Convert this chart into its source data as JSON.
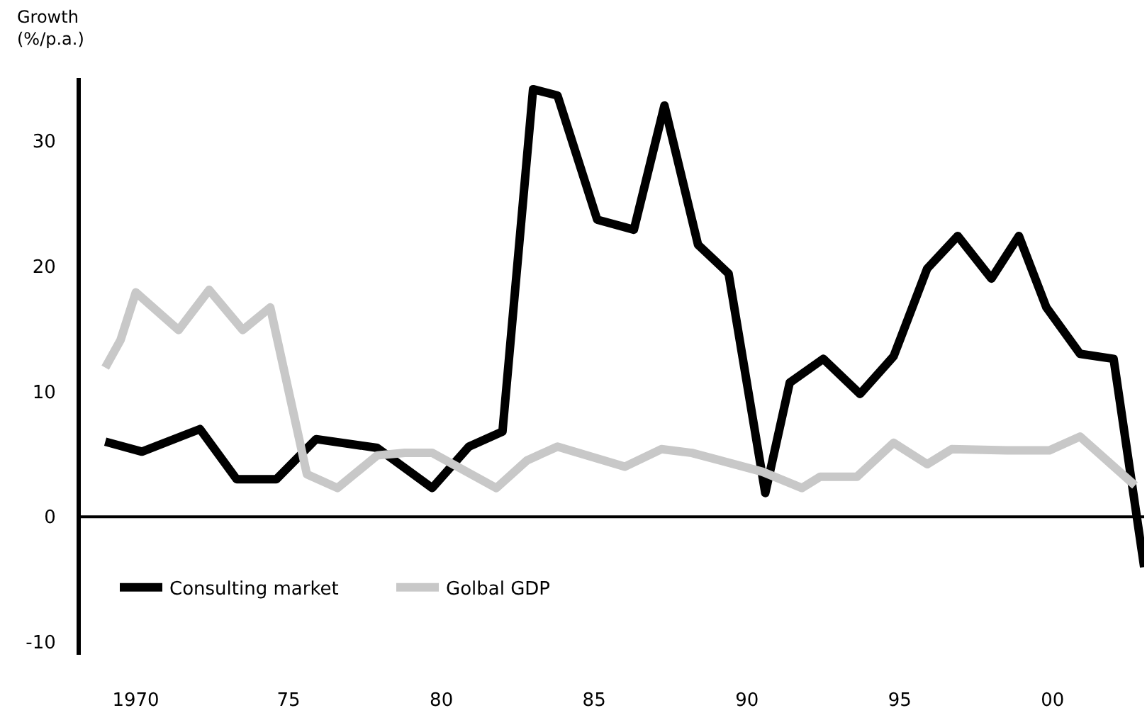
{
  "chart_data": {
    "type": "line",
    "ylabel": "Growth\n(%/p.a.)",
    "series": [
      {
        "name": "Consulting market",
        "color": "#000000",
        "x": [
          1969.0,
          1970.2,
          1972.1,
          1973.3,
          1974.6,
          1975.9,
          1977.9,
          1979.7,
          1980.9,
          1982.0,
          1983.0,
          1983.8,
          1985.1,
          1986.3,
          1987.3,
          1988.4,
          1989.4,
          1990.6,
          1991.4,
          1992.5,
          1993.7,
          1994.8,
          1995.9,
          1996.9,
          1998.0,
          1998.9,
          1999.8,
          2000.9,
          2002.0,
          2003.0
        ],
        "values": [
          6.0,
          5.2,
          7.0,
          3.0,
          3.0,
          6.2,
          5.5,
          2.3,
          5.6,
          6.8,
          34.1,
          33.6,
          23.7,
          22.9,
          32.8,
          21.7,
          19.4,
          1.9,
          10.7,
          12.6,
          9.8,
          12.8,
          19.8,
          22.4,
          19.0,
          22.4,
          16.7,
          13.0,
          12.6,
          -4.0
        ]
      },
      {
        "name": "Golbal GDP",
        "color": "#c8c8c8",
        "x": [
          1969.0,
          1969.5,
          1970.0,
          1971.4,
          1972.4,
          1973.5,
          1974.4,
          1975.6,
          1976.6,
          1977.9,
          1978.8,
          1979.7,
          1981.8,
          1982.8,
          1983.8,
          1986.0,
          1987.2,
          1988.2,
          1990.5,
          1991.8,
          1992.4,
          1993.6,
          1994.8,
          1995.9,
          1996.7,
          1998.5,
          1999.9,
          2000.9,
          2002.7
        ],
        "values": [
          11.9,
          14.1,
          17.9,
          14.9,
          18.1,
          14.9,
          16.7,
          3.4,
          2.3,
          4.9,
          5.1,
          5.1,
          2.3,
          4.5,
          5.6,
          4.0,
          5.4,
          5.1,
          3.6,
          2.3,
          3.2,
          3.2,
          5.9,
          4.2,
          5.4,
          5.3,
          5.3,
          6.4,
          2.5
        ]
      }
    ],
    "xlim": [
      1968.2,
      2003.0
    ],
    "xticks": [
      1970,
      {
        "value": 1975,
        "label": "75"
      },
      {
        "value": 1980,
        "label": "80"
      },
      {
        "value": 1985,
        "label": "85"
      },
      {
        "value": 1990,
        "label": "90"
      },
      {
        "value": 1995,
        "label": "95"
      },
      {
        "value": 2000,
        "label": "00"
      }
    ],
    "ylim": [
      -11,
      35
    ],
    "yticks": [
      -10,
      0,
      10,
      20,
      30
    ],
    "ref_lines": [
      {
        "axis": "y",
        "value": 0,
        "label": null,
        "color": "#000000"
      }
    ],
    "grid": false,
    "legend": "bottom left",
    "marker": "none",
    "line_style": "solid"
  }
}
